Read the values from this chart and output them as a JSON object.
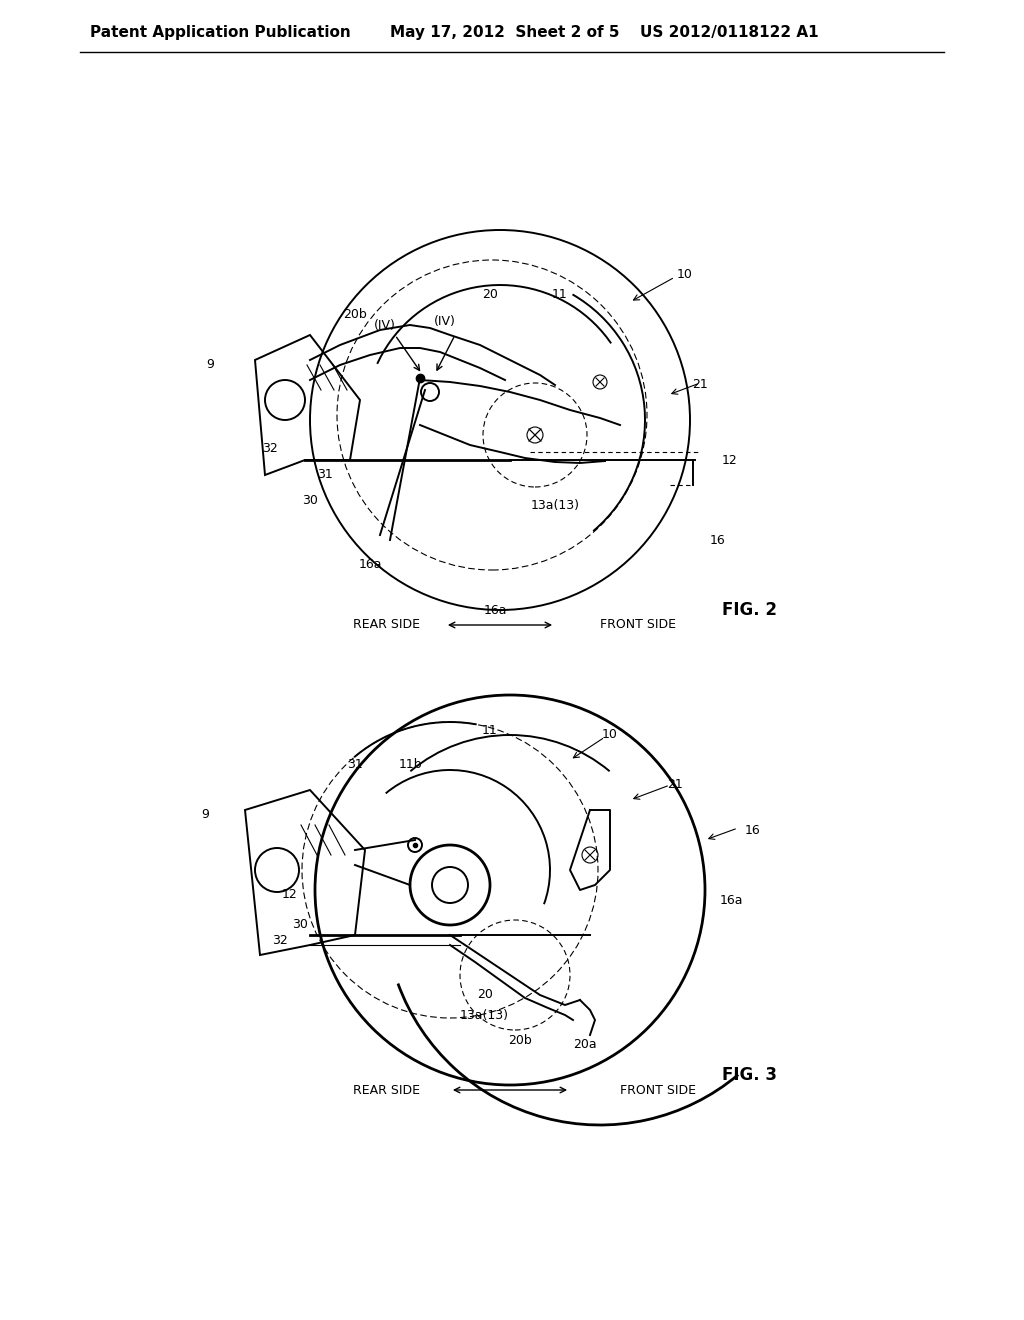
{
  "bg_color": "#ffffff",
  "line_color": "#000000",
  "header_left": "Patent Application Publication",
  "header_center": "May 17, 2012  Sheet 2 of 5",
  "header_right": "US 2012/0118122 A1",
  "fig2_label": "FIG. 2",
  "fig3_label": "FIG. 3",
  "font_size_header": 11,
  "font_size_ref": 9,
  "font_size_fig": 12
}
